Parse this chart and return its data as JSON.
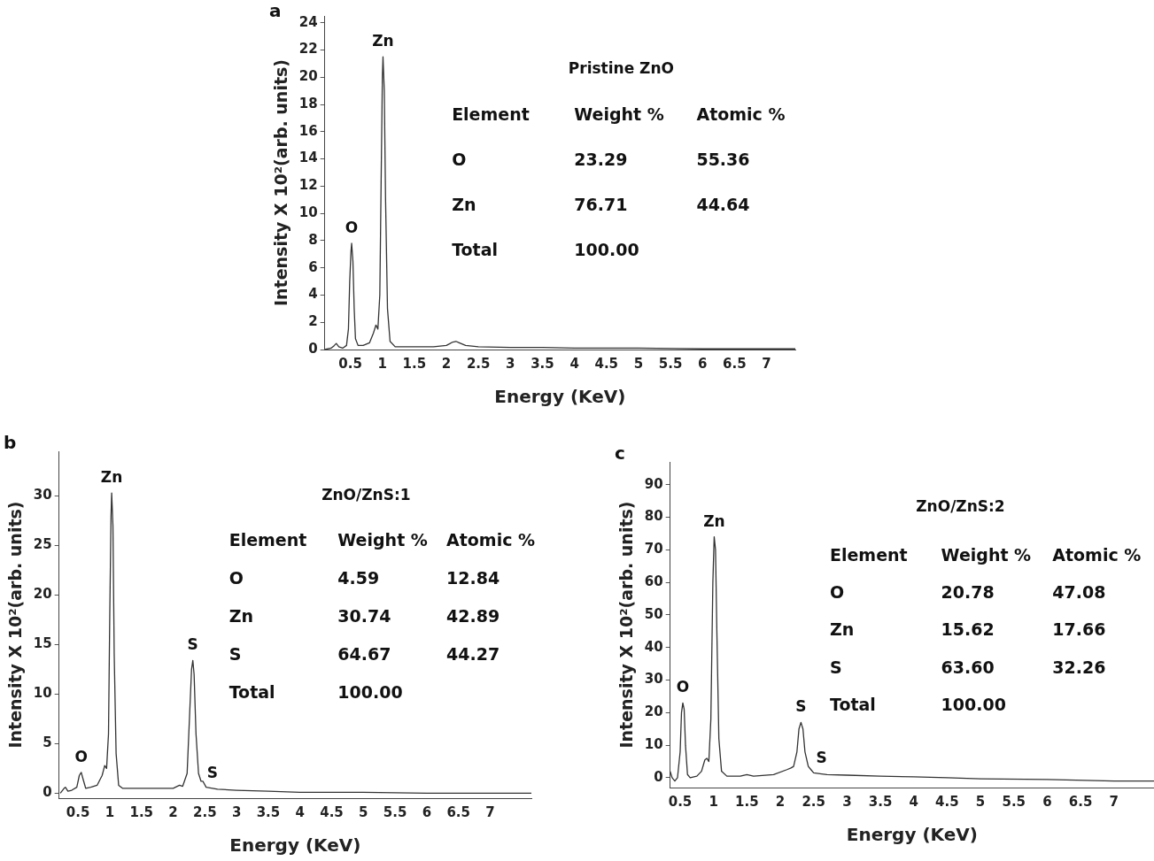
{
  "chart_data": [
    {
      "type": "line",
      "title": "a",
      "subtitle": "Pristine ZnO",
      "xlabel": "Energy (KeV)",
      "ylabel": "Intensity X 10²(arb. units)",
      "color": "#333333",
      "marker": "none",
      "legend": false,
      "grid": false,
      "xlim": [
        0.1,
        7.45
      ],
      "xticks": [
        0.5,
        1,
        1.5,
        2,
        2.5,
        3,
        3.5,
        4,
        4.5,
        5,
        5.5,
        6,
        6.5,
        7
      ],
      "ylim": [
        0,
        24.5
      ],
      "yticks": [
        0,
        2,
        4,
        6,
        8,
        10,
        12,
        14,
        16,
        18,
        20,
        22,
        24
      ],
      "x": [
        0.1,
        0.2,
        0.25,
        0.28,
        0.32,
        0.38,
        0.44,
        0.47,
        0.49,
        0.51,
        0.52,
        0.54,
        0.56,
        0.58,
        0.62,
        0.7,
        0.8,
        0.86,
        0.9,
        0.93,
        0.96,
        0.98,
        1.0,
        1.01,
        1.03,
        1.05,
        1.08,
        1.12,
        1.2,
        1.5,
        1.8,
        2.0,
        2.1,
        2.15,
        2.2,
        2.3,
        2.5,
        3,
        3.5,
        4,
        5,
        6,
        7,
        7.45
      ],
      "values": [
        0,
        0.1,
        0.3,
        0.45,
        0.2,
        0.1,
        0.3,
        1.5,
        5.0,
        7.2,
        7.8,
        6.5,
        3.0,
        0.8,
        0.3,
        0.3,
        0.5,
        1.2,
        1.8,
        1.5,
        4,
        12,
        20,
        21.5,
        19,
        11,
        3,
        0.6,
        0.2,
        0.2,
        0.2,
        0.3,
        0.55,
        0.6,
        0.5,
        0.3,
        0.2,
        0.15,
        0.15,
        0.1,
        0.1,
        0.05,
        0.05,
        0.05
      ],
      "annotations": [
        {
          "text": "O",
          "x": 0.52,
          "y": 7.8
        },
        {
          "text": "Zn",
          "x": 1.01,
          "y": 21.5
        },
        "Element",
        "Weight %",
        "Atomic %",
        "O",
        "23.29",
        "55.36",
        "Zn",
        "76.71",
        "44.64",
        "Total",
        "100.00"
      ]
    },
    {
      "type": "line",
      "title": "b",
      "subtitle": "ZnO/ZnS:1",
      "xlabel": "Energy (KeV)",
      "ylabel": "Intensity X 10²(arb. units)",
      "color": "#333333",
      "marker": "none",
      "legend": false,
      "grid": false,
      "xlim": [
        0.2,
        7.65
      ],
      "xticks": [
        0.5,
        1,
        1.5,
        2,
        2.5,
        3,
        3.5,
        4,
        4.5,
        5,
        5.5,
        6,
        6.5,
        7
      ],
      "ylim": [
        -0.5,
        34.5
      ],
      "yticks": [
        0,
        5,
        10,
        15,
        20,
        25,
        30
      ],
      "x": [
        0.22,
        0.28,
        0.3,
        0.34,
        0.4,
        0.48,
        0.52,
        0.55,
        0.58,
        0.62,
        0.7,
        0.8,
        0.88,
        0.92,
        0.95,
        0.98,
        1.0,
        1.02,
        1.03,
        1.05,
        1.07,
        1.1,
        1.14,
        1.2,
        1.5,
        1.8,
        2.0,
        2.1,
        2.15,
        2.22,
        2.26,
        2.29,
        2.31,
        2.33,
        2.36,
        2.4,
        2.44,
        2.47,
        2.52,
        2.62,
        2.7,
        3,
        3.5,
        4,
        4.5,
        5,
        6,
        7,
        7.65
      ],
      "values": [
        0,
        0.5,
        0.6,
        0.2,
        0.3,
        0.6,
        1.8,
        2.1,
        1.4,
        0.5,
        0.6,
        0.8,
        1.8,
        2.8,
        2.5,
        6,
        18,
        28,
        30.3,
        27,
        14,
        4,
        0.8,
        0.5,
        0.5,
        0.5,
        0.5,
        0.8,
        0.7,
        2,
        8,
        12.5,
        13.4,
        12,
        6,
        2,
        1.2,
        1.2,
        0.6,
        0.5,
        0.4,
        0.3,
        0.2,
        0.1,
        0.1,
        0.1,
        0,
        0,
        0
      ],
      "annotations": [
        {
          "text": "Zn",
          "x": 1.03,
          "y": 30.3
        },
        {
          "text": "O",
          "x": 0.55,
          "y": 2.1
        },
        {
          "text": "S",
          "x": 2.31,
          "y": 13.4
        },
        {
          "text": "S",
          "x": 2.62,
          "y": 0.5
        },
        "Element",
        "Weight %",
        "Atomic %",
        "O",
        "4.59",
        "12.84",
        "Zn",
        "30.74",
        "42.89",
        "S",
        "64.67",
        "44.27",
        "Total",
        "100.00"
      ]
    },
    {
      "type": "line",
      "title": "c",
      "subtitle": "ZnO/ZnS:2",
      "xlabel": "Energy (KeV)",
      "ylabel": "Intensity X 10²(arb. units)",
      "color": "#333333",
      "marker": "none",
      "legend": false,
      "grid": false,
      "xlim": [
        0.35,
        7.6
      ],
      "xticks": [
        0.5,
        1,
        1.5,
        2,
        2.5,
        3,
        3.5,
        4,
        4.5,
        5,
        5.5,
        6,
        6.5,
        7
      ],
      "ylim": [
        -3,
        97
      ],
      "yticks": [
        0,
        10,
        20,
        30,
        40,
        50,
        60,
        70,
        80,
        90
      ],
      "x": [
        0.35,
        0.38,
        0.42,
        0.46,
        0.5,
        0.52,
        0.54,
        0.56,
        0.58,
        0.61,
        0.65,
        0.75,
        0.82,
        0.87,
        0.9,
        0.93,
        0.96,
        0.99,
        1.01,
        1.03,
        1.05,
        1.08,
        1.12,
        1.2,
        1.4,
        1.5,
        1.6,
        1.9,
        2.1,
        2.16,
        2.2,
        2.25,
        2.28,
        2.31,
        2.34,
        2.37,
        2.42,
        2.46,
        2.5,
        2.62,
        2.7,
        3,
        3.5,
        4,
        4.5,
        5,
        6,
        7,
        7.6
      ],
      "values": [
        2,
        0,
        -1,
        0,
        8,
        20,
        23,
        21,
        10,
        1,
        0,
        0.5,
        2,
        5.5,
        6,
        5,
        18,
        60,
        74,
        70,
        45,
        12,
        2,
        0.5,
        0.5,
        1,
        0.5,
        1,
        2.5,
        3,
        3.5,
        8,
        15,
        17,
        15,
        8,
        3.5,
        2.5,
        1.5,
        1.2,
        1,
        0.8,
        0.5,
        0.3,
        0,
        -0.3,
        -0.5,
        -1,
        -1
      ],
      "annotations": [
        {
          "text": "O",
          "x": 0.54,
          "y": 23
        },
        {
          "text": "Zn",
          "x": 1.01,
          "y": 74
        },
        {
          "text": "S",
          "x": 2.31,
          "y": 17
        },
        {
          "text": "S",
          "x": 2.62,
          "y": 1.2
        },
        "Element",
        "Weight %",
        "Atomic %",
        "O",
        "20.78",
        "47.08",
        "Zn",
        "15.62",
        "17.66",
        "S",
        "63.60",
        "32.26",
        "Total",
        "100.00"
      ]
    }
  ]
}
